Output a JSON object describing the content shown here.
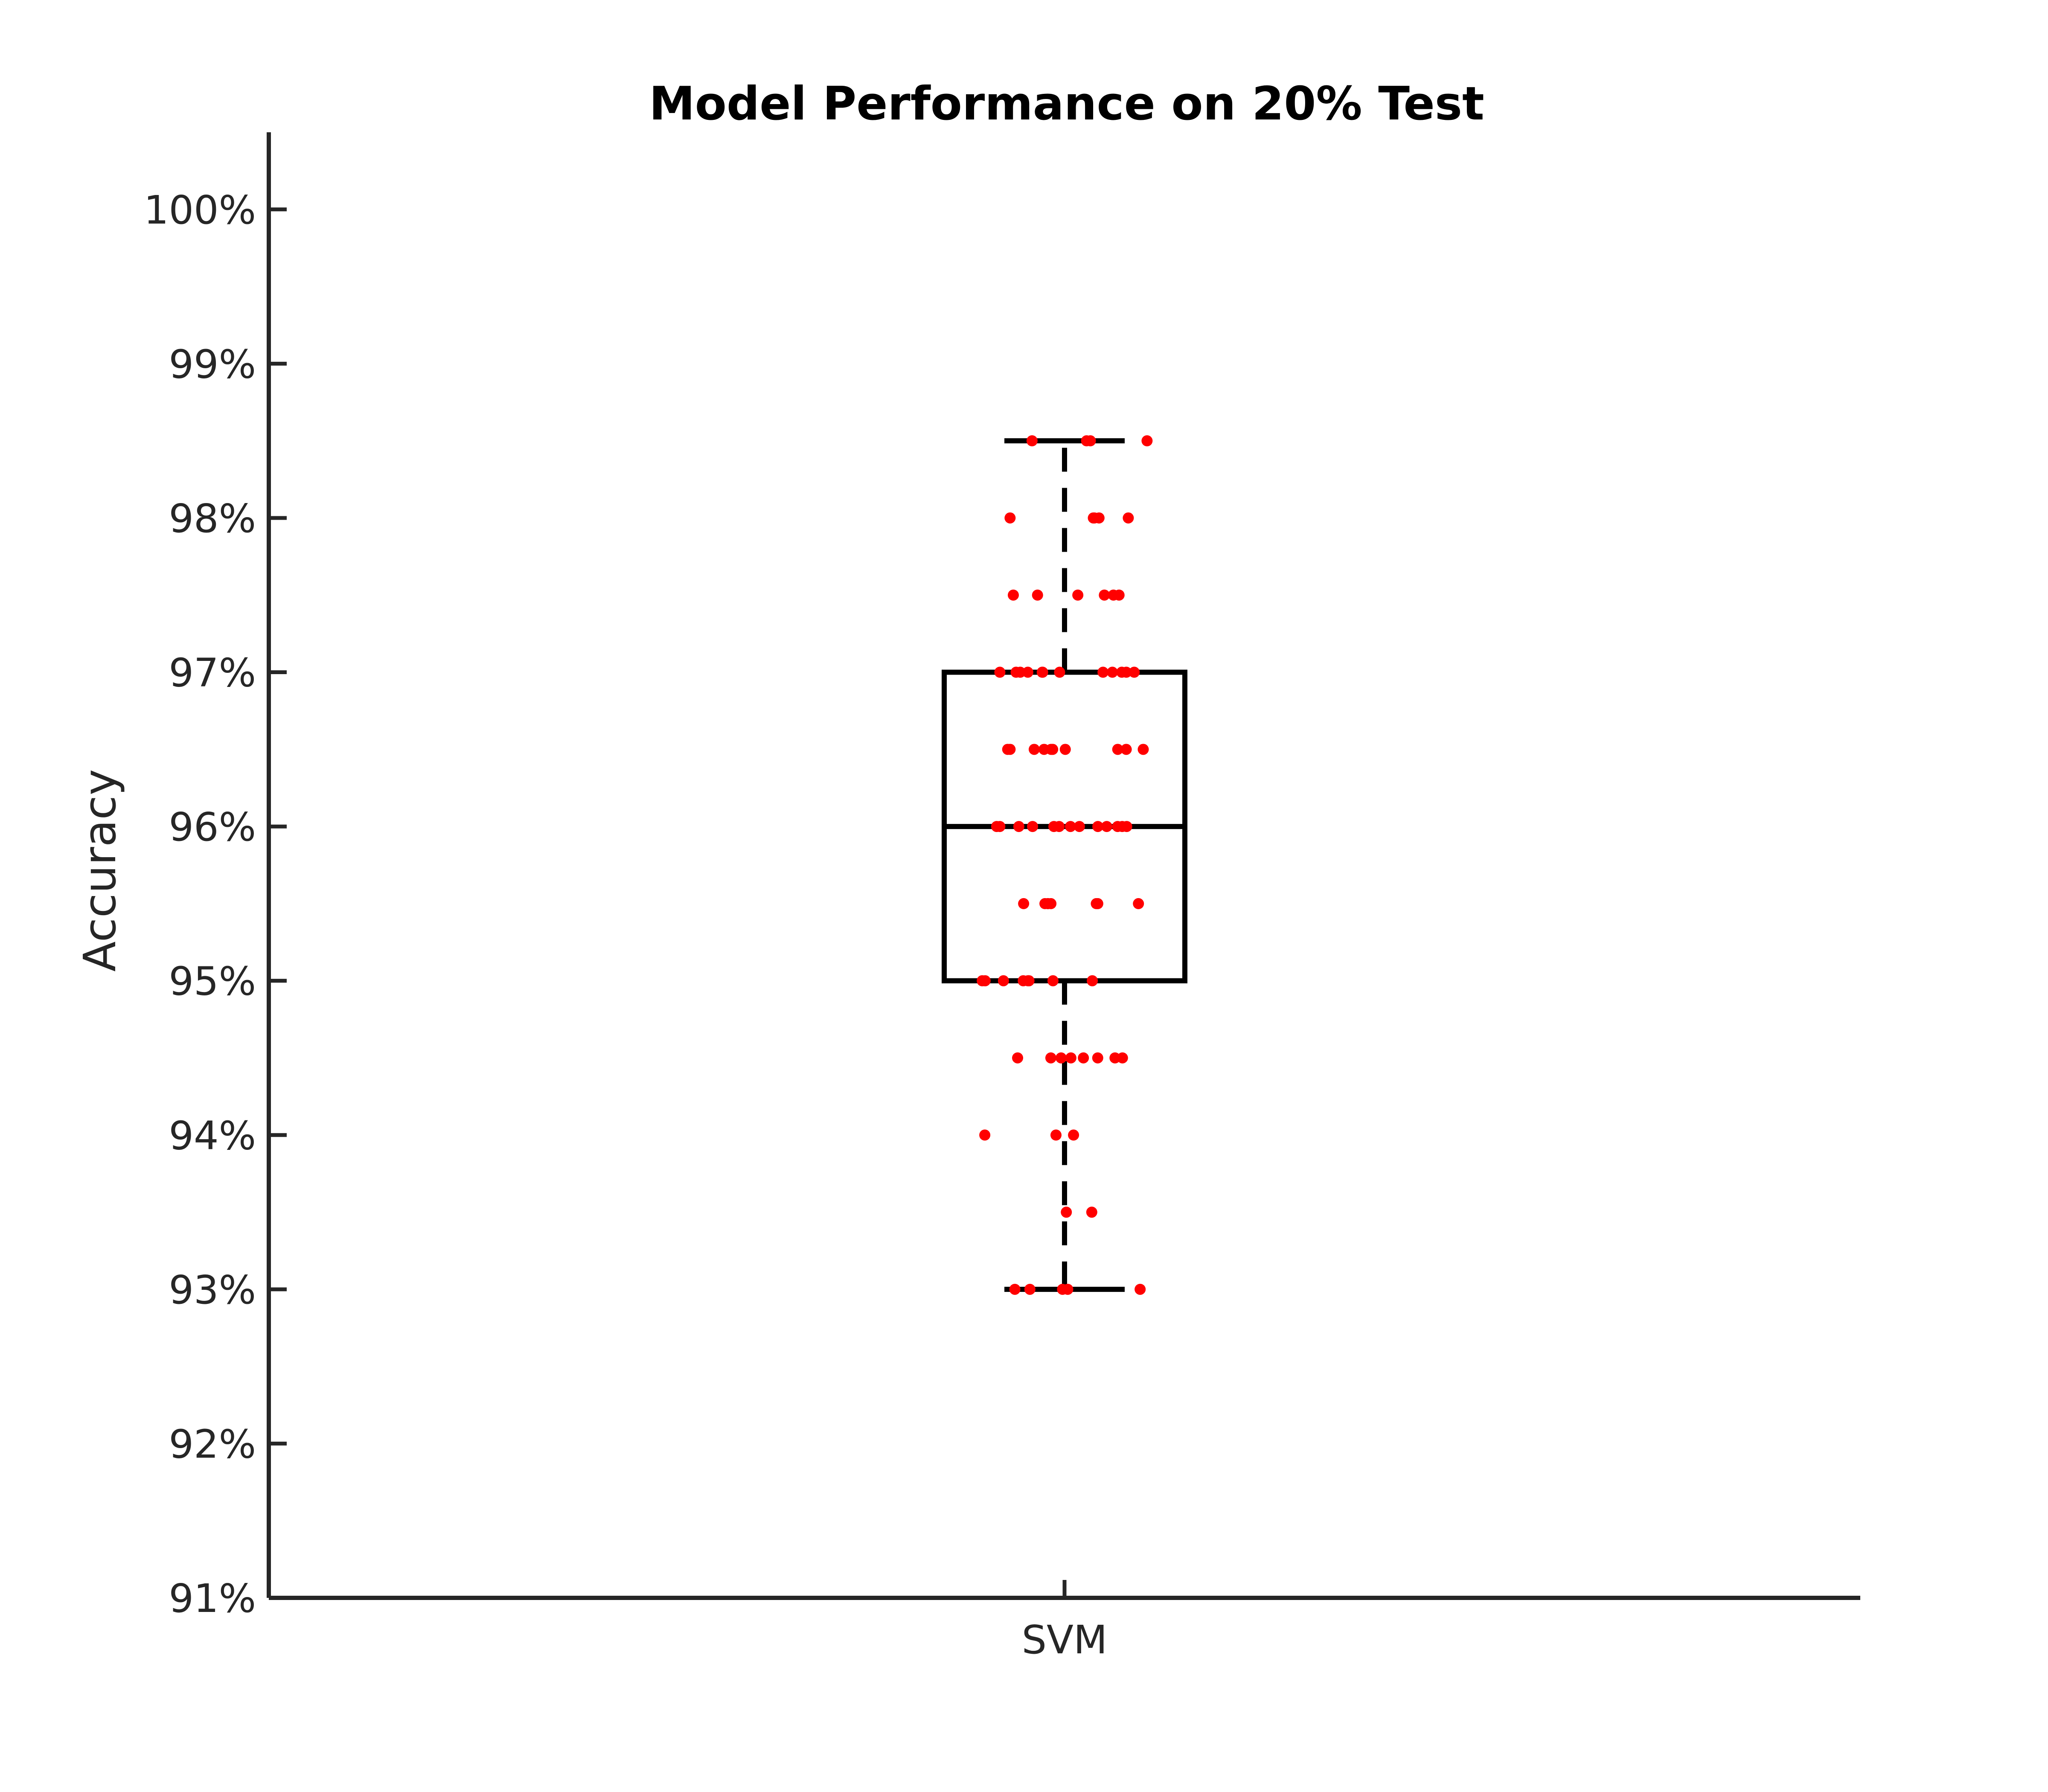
{
  "chart_data": {
    "type": "box",
    "title": "Model Performance on 20% Test",
    "xlabel": "",
    "ylabel": "Accuracy",
    "categories": [
      "SVM"
    ],
    "ylim": [
      91,
      100.5
    ],
    "yticks": [
      91,
      92,
      93,
      94,
      95,
      96,
      97,
      98,
      99,
      100
    ],
    "ytick_labels": [
      "91%",
      "92%",
      "93%",
      "94%",
      "95%",
      "96%",
      "97%",
      "98%",
      "99%",
      "100%"
    ],
    "box": {
      "min": 93.0,
      "q1": 95.0,
      "median": 96.0,
      "q3": 97.0,
      "max": 98.5
    },
    "points": {
      "color": "#ff0000",
      "values": [
        98.5,
        98.5,
        98.5,
        98.5,
        98.0,
        98.0,
        98.0,
        98.0,
        98.0,
        97.5,
        97.5,
        97.5,
        97.5,
        97.5,
        97.5,
        97.0,
        97.0,
        97.0,
        97.0,
        97.0,
        97.0,
        97.0,
        97.0,
        97.0,
        97.0,
        97.0,
        97.0,
        96.5,
        96.5,
        96.5,
        96.5,
        96.5,
        96.5,
        96.5,
        96.5,
        96.5,
        96.5,
        96.0,
        96.0,
        96.0,
        96.0,
        96.0,
        96.0,
        96.0,
        96.0,
        96.0,
        96.0,
        96.0,
        96.0,
        96.0,
        95.5,
        95.5,
        95.5,
        95.5,
        95.5,
        95.5,
        95.5,
        95.5,
        95.0,
        95.0,
        95.0,
        95.0,
        95.0,
        95.0,
        95.0,
        95.0,
        94.5,
        94.5,
        94.5,
        94.5,
        94.5,
        94.5,
        94.5,
        94.5,
        94.0,
        94.0,
        94.0,
        93.5,
        93.5,
        93.0,
        93.0,
        93.0,
        93.0,
        93.0
      ]
    },
    "grid": false
  }
}
